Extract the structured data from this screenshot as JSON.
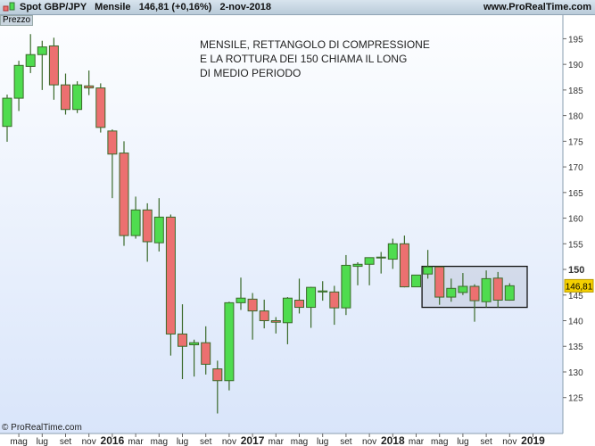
{
  "header": {
    "instrument": "Spot GBP/JPY",
    "period": "Mensile",
    "price": "146,81 (+0,16%)",
    "date": "2-nov-2018",
    "site": "www.ProRealTime.com"
  },
  "panel_label": "Prezzo",
  "copyright": "© ProRealTime.com",
  "annotation": [
    "MENSILE, RETTANGOLO DI COMPRESSIONE",
    "E LA ROTTURA DEI 150 CHIAMA IL LONG",
    "DI MEDIO PERIODO"
  ],
  "colors": {
    "up": "#4fdc4f",
    "down": "#ec7070",
    "border": "#3a6a2a",
    "last_price_bg": "#f5d000"
  },
  "chart_data": {
    "type": "candlestick",
    "ylim": [
      120,
      198
    ],
    "yticks": [
      125,
      130,
      135,
      140,
      145,
      150,
      155,
      160,
      165,
      170,
      175,
      180,
      185,
      190,
      195
    ],
    "last_price": 146.81,
    "last_price_label": "146,81",
    "xtick_labels": [
      {
        "i": 1,
        "t": "mag"
      },
      {
        "i": 3,
        "t": "lug"
      },
      {
        "i": 5,
        "t": "set"
      },
      {
        "i": 7,
        "t": "nov"
      },
      {
        "i": 9,
        "t": "2016",
        "bold": true
      },
      {
        "i": 11,
        "t": "mar"
      },
      {
        "i": 13,
        "t": "mag"
      },
      {
        "i": 15,
        "t": "lug"
      },
      {
        "i": 17,
        "t": "set"
      },
      {
        "i": 19,
        "t": "nov"
      },
      {
        "i": 21,
        "t": "2017",
        "bold": true
      },
      {
        "i": 23,
        "t": "mar"
      },
      {
        "i": 25,
        "t": "mag"
      },
      {
        "i": 27,
        "t": "lug"
      },
      {
        "i": 29,
        "t": "set"
      },
      {
        "i": 31,
        "t": "nov"
      },
      {
        "i": 33,
        "t": "2018",
        "bold": true
      },
      {
        "i": 35,
        "t": "mar"
      },
      {
        "i": 37,
        "t": "mag"
      },
      {
        "i": 39,
        "t": "lug"
      },
      {
        "i": 41,
        "t": "set"
      },
      {
        "i": 43,
        "t": "nov"
      },
      {
        "i": 45,
        "t": "2019",
        "bold": true
      }
    ],
    "ohlc": [
      [
        177.9,
        184.1,
        174.9,
        183.4
      ],
      [
        183.4,
        190.7,
        180.9,
        189.8
      ],
      [
        189.6,
        195.9,
        188.3,
        191.9
      ],
      [
        191.9,
        194.6,
        185.0,
        193.4
      ],
      [
        193.6,
        195.2,
        183.1,
        186.0
      ],
      [
        186.0,
        188.2,
        180.2,
        181.2
      ],
      [
        181.2,
        186.7,
        180.5,
        186.0
      ],
      [
        185.8,
        188.8,
        184.0,
        185.4
      ],
      [
        185.4,
        186.3,
        176.7,
        177.7
      ],
      [
        177.0,
        177.3,
        163.9,
        172.5
      ],
      [
        172.7,
        175.0,
        154.6,
        156.6
      ],
      [
        156.6,
        164.2,
        156.0,
        161.6
      ],
      [
        161.6,
        162.9,
        151.5,
        155.4
      ],
      [
        155.2,
        163.9,
        153.5,
        160.2
      ],
      [
        160.2,
        160.7,
        133.2,
        137.4
      ],
      [
        137.4,
        143.2,
        128.6,
        135.0
      ],
      [
        135.3,
        136.3,
        129.1,
        135.7
      ],
      [
        135.7,
        138.9,
        129.5,
        131.5
      ],
      [
        130.6,
        132.2,
        121.9,
        128.3
      ],
      [
        128.3,
        143.7,
        126.4,
        143.5
      ],
      [
        143.5,
        148.4,
        142.1,
        144.4
      ],
      [
        144.2,
        145.4,
        136.3,
        141.9
      ],
      [
        141.9,
        144.1,
        138.5,
        140.0
      ],
      [
        140.0,
        140.7,
        137.5,
        139.7
      ],
      [
        139.6,
        144.6,
        135.4,
        144.4
      ],
      [
        144.0,
        148.2,
        141.4,
        142.6
      ],
      [
        142.6,
        146.6,
        138.6,
        146.5
      ],
      [
        145.6,
        147.7,
        143.9,
        145.8
      ],
      [
        145.6,
        146.8,
        139.2,
        142.5
      ],
      [
        142.5,
        152.8,
        141.1,
        150.8
      ],
      [
        150.6,
        151.4,
        146.9,
        151.0
      ],
      [
        151.0,
        152.3,
        146.9,
        152.3
      ],
      [
        152.3,
        153.4,
        149.2,
        152.4
      ],
      [
        152.0,
        156.0,
        150.1,
        155.0
      ],
      [
        155.0,
        156.6,
        146.5,
        146.6
      ],
      [
        146.6,
        148.9,
        146.6,
        148.9
      ],
      [
        149.1,
        153.8,
        148.2,
        150.5
      ],
      [
        150.5,
        150.5,
        143.1,
        144.6
      ],
      [
        144.6,
        148.2,
        143.7,
        146.3
      ],
      [
        145.5,
        149.3,
        145.0,
        146.7
      ],
      [
        146.7,
        147.1,
        139.8,
        143.9
      ],
      [
        143.7,
        149.8,
        142.6,
        148.2
      ],
      [
        148.3,
        149.5,
        142.6,
        144.0
      ],
      [
        144.0,
        147.3,
        143.9,
        146.81
      ]
    ],
    "rectangle": {
      "from_index": 36,
      "to_index": 45,
      "top": 150.6,
      "bottom": 142.6
    }
  }
}
